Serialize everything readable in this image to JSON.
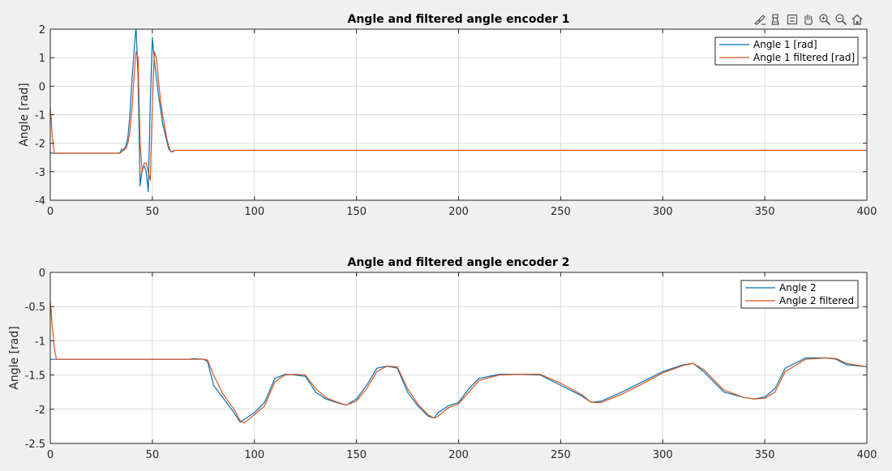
{
  "toolbar": {
    "buttons": [
      {
        "name": "brush-icon"
      },
      {
        "name": "data-tips-icon"
      },
      {
        "name": "legend-toggle-icon"
      },
      {
        "name": "pan-hand-icon"
      },
      {
        "name": "zoom-in-icon"
      },
      {
        "name": "zoom-out-icon"
      },
      {
        "name": "home-icon"
      }
    ]
  },
  "colors": {
    "series1": "#0072BD",
    "series2": "#D95319",
    "grid": "#dcdcdc",
    "axes": "#262626"
  },
  "chart_data": [
    {
      "type": "line",
      "title": "Angle and filtered angle encoder 1",
      "xlabel": "",
      "ylabel": "Angle [rad]",
      "xlim": [
        0,
        400
      ],
      "ylim": [
        -4,
        2
      ],
      "xticks": [
        0,
        50,
        100,
        150,
        200,
        250,
        300,
        350,
        400
      ],
      "yticks": [
        -4,
        -3,
        -2,
        -1,
        0,
        1,
        2
      ],
      "grid": true,
      "legend_position": "top-right",
      "series": [
        {
          "name": "Angle 1 [rad]",
          "x": [
            0,
            0.5,
            1,
            2,
            3,
            10,
            20,
            30,
            34,
            35,
            36,
            37,
            38,
            39,
            40,
            41,
            42,
            43,
            44,
            45,
            46,
            47,
            48,
            49,
            50,
            51,
            52,
            53,
            54,
            55,
            56,
            57,
            58,
            59,
            60,
            61,
            62,
            63,
            64,
            66,
            100,
            200,
            300,
            400
          ],
          "y": [
            -2.3,
            -2.35,
            -2.35,
            -2.35,
            -2.35,
            -2.35,
            -2.35,
            -2.35,
            -2.35,
            -2.2,
            -2.25,
            -2.1,
            -1.8,
            -1.0,
            0.2,
            1.2,
            2.1,
            0.3,
            -3.5,
            -2.9,
            -2.8,
            -3.0,
            -3.7,
            -0.5,
            1.7,
            0.9,
            0.3,
            -0.3,
            -0.8,
            -1.3,
            -1.6,
            -1.9,
            -2.2,
            -2.3,
            -2.28,
            -2.25,
            -2.25,
            -2.25,
            -2.25,
            -2.25,
            -2.25,
            -2.25,
            -2.25,
            -2.25
          ]
        },
        {
          "name": "Angle 1 filtered [rad]",
          "x": [
            0,
            0.5,
            1,
            2,
            3,
            10,
            20,
            30,
            34,
            35,
            36,
            37,
            38,
            39,
            40,
            41,
            42,
            43,
            44,
            45,
            46,
            47,
            48,
            49,
            50,
            51,
            52,
            53,
            54,
            55,
            56,
            57,
            58,
            59,
            60,
            61,
            62,
            63,
            64,
            66,
            100,
            200,
            300,
            400
          ],
          "y": [
            -0.75,
            -1.2,
            -1.8,
            -2.35,
            -2.35,
            -2.35,
            -2.35,
            -2.35,
            -2.35,
            -2.3,
            -2.2,
            -2.2,
            -2.0,
            -1.6,
            -0.8,
            0.3,
            1.2,
            1.0,
            -2.0,
            -3.0,
            -2.7,
            -2.7,
            -3.0,
            -3.3,
            -0.6,
            1.2,
            1.0,
            0.2,
            -0.5,
            -1.0,
            -1.4,
            -1.8,
            -2.1,
            -2.3,
            -2.3,
            -2.25,
            -2.25,
            -2.25,
            -2.25,
            -2.25,
            -2.25,
            -2.25,
            -2.25,
            -2.25
          ]
        }
      ]
    },
    {
      "type": "line",
      "title": "Angle and filtered angle encoder 2",
      "xlabel": "",
      "ylabel": "Angle [rad]",
      "xlim": [
        0,
        400
      ],
      "ylim": [
        -2.5,
        0
      ],
      "xticks": [
        0,
        50,
        100,
        150,
        200,
        250,
        300,
        350,
        400
      ],
      "yticks": [
        -2.5,
        -2,
        -1.5,
        -1,
        -0.5,
        0
      ],
      "grid": true,
      "legend_position": "top-right",
      "series": [
        {
          "name": "Angle 2",
          "x": [
            0,
            0.5,
            1,
            2,
            3,
            10,
            30,
            50,
            68,
            70,
            75,
            77,
            80,
            85,
            90,
            93,
            95,
            100,
            105,
            110,
            115,
            120,
            125,
            130,
            135,
            140,
            145,
            150,
            155,
            160,
            165,
            170,
            175,
            180,
            185,
            188,
            190,
            195,
            200,
            205,
            210,
            220,
            230,
            240,
            250,
            260,
            265,
            270,
            280,
            290,
            300,
            310,
            315,
            320,
            330,
            340,
            345,
            350,
            355,
            360,
            370,
            380,
            385,
            390,
            400
          ],
          "y": [
            -1.27,
            -1.27,
            -1.27,
            -1.27,
            -1.27,
            -1.27,
            -1.27,
            -1.27,
            -1.27,
            -1.26,
            -1.27,
            -1.3,
            -1.65,
            -1.85,
            -2.05,
            -2.19,
            -2.15,
            -2.05,
            -1.9,
            -1.55,
            -1.49,
            -1.5,
            -1.52,
            -1.75,
            -1.85,
            -1.9,
            -1.94,
            -1.85,
            -1.65,
            -1.4,
            -1.37,
            -1.4,
            -1.75,
            -1.95,
            -2.1,
            -2.13,
            -2.05,
            -1.95,
            -1.9,
            -1.7,
            -1.55,
            -1.49,
            -1.49,
            -1.5,
            -1.65,
            -1.8,
            -1.9,
            -1.88,
            -1.75,
            -1.6,
            -1.45,
            -1.35,
            -1.33,
            -1.45,
            -1.75,
            -1.83,
            -1.85,
            -1.82,
            -1.7,
            -1.4,
            -1.25,
            -1.25,
            -1.27,
            -1.35,
            -1.38
          ]
        },
        {
          "name": "Angle 2 filtered",
          "x": [
            0,
            0.5,
            1,
            2,
            3,
            10,
            30,
            50,
            68,
            70,
            75,
            77,
            80,
            85,
            90,
            93,
            95,
            100,
            105,
            110,
            115,
            120,
            125,
            130,
            135,
            140,
            145,
            150,
            155,
            160,
            165,
            170,
            175,
            180,
            185,
            188,
            190,
            195,
            200,
            205,
            210,
            220,
            230,
            240,
            250,
            260,
            265,
            270,
            280,
            290,
            300,
            310,
            315,
            320,
            330,
            340,
            345,
            350,
            355,
            360,
            370,
            380,
            385,
            390,
            400
          ],
          "y": [
            -0.42,
            -0.6,
            -0.8,
            -1.1,
            -1.27,
            -1.27,
            -1.27,
            -1.27,
            -1.27,
            -1.27,
            -1.27,
            -1.28,
            -1.5,
            -1.8,
            -2.0,
            -2.17,
            -2.2,
            -2.08,
            -1.95,
            -1.6,
            -1.5,
            -1.49,
            -1.5,
            -1.7,
            -1.83,
            -1.89,
            -1.94,
            -1.88,
            -1.7,
            -1.45,
            -1.37,
            -1.38,
            -1.7,
            -1.92,
            -2.08,
            -2.13,
            -2.1,
            -1.98,
            -1.92,
            -1.75,
            -1.58,
            -1.5,
            -1.49,
            -1.49,
            -1.62,
            -1.78,
            -1.9,
            -1.9,
            -1.78,
            -1.63,
            -1.47,
            -1.36,
            -1.33,
            -1.42,
            -1.72,
            -1.83,
            -1.85,
            -1.84,
            -1.75,
            -1.45,
            -1.27,
            -1.25,
            -1.26,
            -1.33,
            -1.38
          ]
        }
      ]
    }
  ]
}
